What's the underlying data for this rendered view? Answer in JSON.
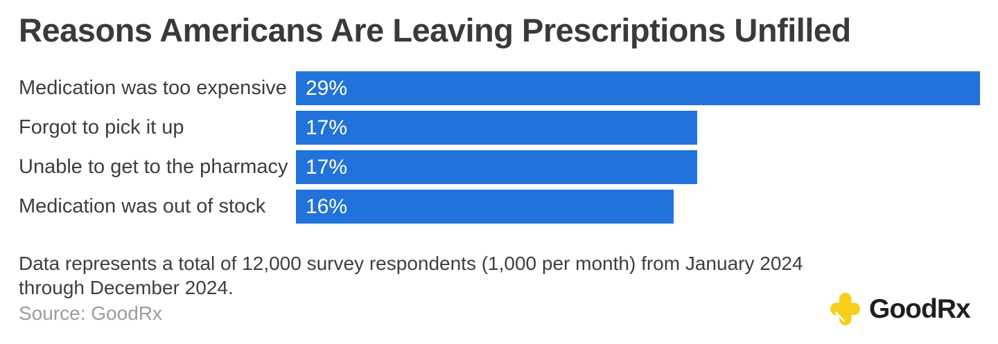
{
  "title": "Reasons Americans Are Leaving Prescriptions Unfilled",
  "chart_data": {
    "type": "bar",
    "orientation": "horizontal",
    "title": "Reasons Americans Are Leaving Prescriptions Unfilled",
    "categories": [
      "Medication was too expensive",
      "Forgot to pick it up",
      "Unable to get to the pharmacy",
      "Medication was out of stock"
    ],
    "values": [
      29,
      17,
      17,
      16
    ],
    "value_labels": [
      "29%",
      "17%",
      "17%",
      "16%"
    ],
    "unit": "%",
    "xlim": [
      0,
      29
    ],
    "grid": false,
    "legend": false,
    "bar_color": "#2173DB",
    "value_label_color": "#FFFFFF",
    "value_label_position": "inside-start"
  },
  "footnote_lines": [
    "Data represents a total of 12,000 survey respondents (1,000 per month) from January 2024",
    "through December 2024."
  ],
  "source": "Source: GoodRx",
  "logo": {
    "brand_bold": "Good",
    "brand_light": "Rx",
    "cross_color": "#F8CE1A",
    "text_color": "#1F1F1F"
  }
}
